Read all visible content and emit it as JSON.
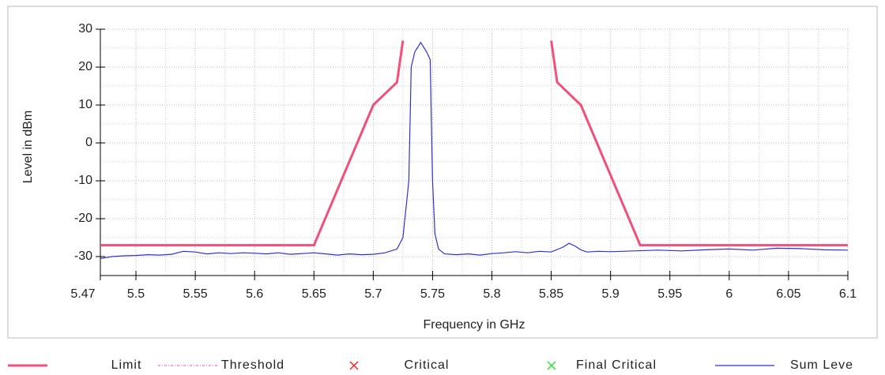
{
  "chart_data": {
    "type": "line",
    "xlabel": "Frequency in GHz",
    "ylabel": "Level in dBm",
    "xlim": [
      5.47,
      6.1
    ],
    "ylim": [
      -35,
      30
    ],
    "xticks": [
      5.47,
      5.5,
      5.55,
      5.6,
      5.65,
      5.7,
      5.75,
      5.8,
      5.85,
      5.9,
      5.95,
      6,
      6.05,
      6.1
    ],
    "yticks": [
      -30,
      -20,
      -10,
      0,
      10,
      20,
      30
    ],
    "grid": true,
    "grid_minor": true,
    "legend": "bottom",
    "series": [
      {
        "name": "Limit",
        "color": "#f0507a",
        "style": "solid",
        "x": [
          5.47,
          5.65,
          5.7,
          5.72,
          5.725,
          null,
          5.85,
          5.855,
          5.875,
          5.925,
          6.1
        ],
        "values": [
          -27,
          -27,
          10,
          16,
          27,
          null,
          27,
          16,
          10,
          -27,
          -27
        ]
      },
      {
        "name": "Threshold",
        "color": "#e040e0",
        "style": "dashed",
        "x": [],
        "values": []
      },
      {
        "name": "Critical",
        "color": "#ff2020",
        "style": "cross",
        "x": [],
        "values": []
      },
      {
        "name": "Final Critical",
        "color": "#30e030",
        "style": "cross",
        "x": [],
        "values": []
      },
      {
        "name": "Sum Leve",
        "color": "#3030d0",
        "style": "thin",
        "x": [
          5.47,
          5.48,
          5.49,
          5.5,
          5.51,
          5.52,
          5.53,
          5.54,
          5.55,
          5.56,
          5.57,
          5.58,
          5.59,
          5.6,
          5.61,
          5.62,
          5.63,
          5.64,
          5.65,
          5.66,
          5.67,
          5.68,
          5.69,
          5.7,
          5.71,
          5.72,
          5.725,
          5.73,
          5.732,
          5.735,
          5.74,
          5.745,
          5.748,
          5.75,
          5.752,
          5.755,
          5.76,
          5.77,
          5.78,
          5.79,
          5.8,
          5.81,
          5.82,
          5.83,
          5.84,
          5.85,
          5.86,
          5.865,
          5.87,
          5.875,
          5.88,
          5.89,
          5.9,
          5.92,
          5.94,
          5.96,
          5.98,
          6,
          6.02,
          6.04,
          6.06,
          6.08,
          6.1
        ],
        "values": [
          -30.5,
          -30,
          -29.8,
          -29.7,
          -29.5,
          -29.6,
          -29.4,
          -28.6,
          -28.8,
          -29.3,
          -29,
          -29.2,
          -29,
          -29.1,
          -29.3,
          -29,
          -29.4,
          -29.2,
          -29,
          -29.3,
          -29.6,
          -29.3,
          -29.5,
          -29.4,
          -29,
          -28,
          -25,
          -10,
          20,
          24,
          26.5,
          24,
          22,
          -10,
          -24,
          -28,
          -29.3,
          -29.5,
          -29.3,
          -29.6,
          -29.2,
          -29,
          -28.7,
          -29,
          -28.6,
          -28.8,
          -27.5,
          -26.5,
          -27.2,
          -28.2,
          -28.8,
          -28.6,
          -28.7,
          -28.5,
          -28.3,
          -28.5,
          -28.2,
          -28,
          -28.3,
          -27.8,
          -27.9,
          -28.2,
          -28.3
        ]
      }
    ]
  }
}
